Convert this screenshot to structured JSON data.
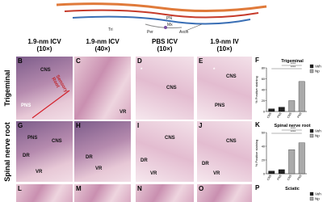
{
  "figure": {
    "diagram_labels": [
      "Tri",
      "PN",
      "Per",
      "Mx",
      "Axon"
    ],
    "columns": [
      {
        "line1": "1.9-nm ICV",
        "line2": "(10×)"
      },
      {
        "line1": "1.9-nm ICV",
        "line2": "(40×)"
      },
      {
        "line1": "PBS ICV",
        "line2": "(10×)"
      },
      {
        "line1": "1.9-nm IV",
        "line2": "(10×)"
      }
    ],
    "rows": [
      "Trigeminal",
      "Spinal nerve root"
    ],
    "panels": [
      {
        "letter": "B",
        "labels": [
          "CNS",
          "PNS",
          "Sensory Root"
        ]
      },
      {
        "letter": "C",
        "labels": [
          "VR"
        ]
      },
      {
        "letter": "D",
        "labels": [
          "CNS",
          "*"
        ]
      },
      {
        "letter": "E",
        "labels": [
          "CNS",
          "PNS",
          "*"
        ]
      },
      {
        "letter": "G",
        "labels": [
          "PNS",
          "CNS",
          "DR",
          "VR"
        ]
      },
      {
        "letter": "H",
        "labels": [
          "DR",
          "VR"
        ]
      },
      {
        "letter": "I",
        "labels": [
          "CNS",
          "DR",
          "VR"
        ]
      },
      {
        "letter": "J",
        "labels": [
          "CNS",
          "DR",
          "VR"
        ]
      },
      {
        "letter": "L",
        "labels": []
      },
      {
        "letter": "M",
        "labels": []
      },
      {
        "letter": "N",
        "labels": []
      },
      {
        "letter": "O",
        "labels": []
      }
    ]
  },
  "chart_data": [
    {
      "type": "bar",
      "letter": "F",
      "title": "Trigeminal",
      "y_label": "% Positive staining",
      "categories": [
        "CNS",
        "PNS",
        "CNS",
        "PNS"
      ],
      "values": [
        5,
        8,
        20,
        55
      ],
      "colors": [
        "#222222",
        "#222222",
        "#aaaaaa",
        "#aaaaaa"
      ],
      "ylim": [
        0,
        80
      ],
      "yticks": [
        0,
        20,
        40,
        60,
        80
      ],
      "legend": [
        {
          "name": "Veh",
          "color": "#222222"
        },
        {
          "name": "Np",
          "color": "#aaaaaa"
        }
      ],
      "annotations": [
        "****",
        "****"
      ]
    },
    {
      "type": "bar",
      "letter": "K",
      "title": "Spinal nerve root",
      "y_label": "% Positive staining",
      "categories": [
        "CNS",
        "PNS",
        "CNS",
        "PNS"
      ],
      "values": [
        4,
        6,
        35,
        45
      ],
      "colors": [
        "#222222",
        "#222222",
        "#aaaaaa",
        "#aaaaaa"
      ],
      "ylim": [
        0,
        60
      ],
      "yticks": [
        0,
        20,
        40,
        60
      ],
      "legend": [
        {
          "name": "Veh",
          "color": "#222222"
        },
        {
          "name": "Np",
          "color": "#aaaaaa"
        }
      ],
      "annotations": [
        "****",
        "****"
      ]
    },
    {
      "type": "legend-only",
      "letter": "P",
      "title": "Sciatic",
      "legend": [
        {
          "name": "Veh",
          "color": "#222222"
        },
        {
          "name": "Np",
          "color": "#aaaaaa"
        }
      ]
    }
  ]
}
